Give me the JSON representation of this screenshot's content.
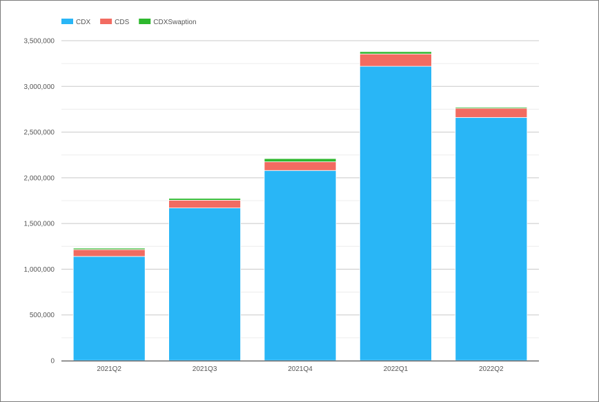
{
  "chart_data": {
    "type": "bar",
    "stacked": true,
    "categories": [
      "2021Q2",
      "2021Q3",
      "2021Q4",
      "2022Q1",
      "2022Q2"
    ],
    "series": [
      {
        "name": "CDX",
        "color": "#29b6f6",
        "values": [
          1140000,
          1670000,
          2080000,
          3220000,
          2660000
        ]
      },
      {
        "name": "CDS",
        "color": "#f26b61",
        "values": [
          75000,
          85000,
          95000,
          135000,
          100000
        ]
      },
      {
        "name": "CDXSwaption",
        "color": "#2eb82e",
        "values": [
          15000,
          20000,
          35000,
          25000,
          12000
        ]
      }
    ],
    "ylim": [
      0,
      3500000
    ],
    "yticks": [
      0,
      500000,
      1000000,
      1500000,
      2000000,
      2500000,
      3000000,
      3500000
    ],
    "ytick_labels": [
      "0",
      "500,000",
      "1,000,000",
      "1,500,000",
      "2,000,000",
      "2,500,000",
      "3,000,000",
      "3,500,000"
    ],
    "legend_position": "top-left",
    "grid": true,
    "title": "",
    "xlabel": "",
    "ylabel": ""
  }
}
